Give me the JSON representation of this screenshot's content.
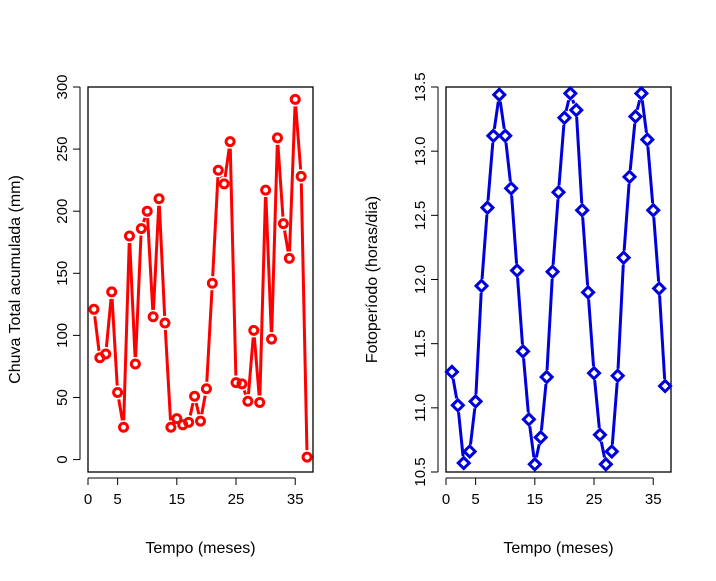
{
  "chart_data": [
    {
      "type": "line",
      "markers": "circle",
      "color": "#ff0000",
      "xlabel": "Tempo (meses)",
      "ylabel": "Chuva Total acumulada (mm)",
      "xlim": [
        0,
        38
      ],
      "ylim": [
        -10,
        300
      ],
      "xticks": [
        0,
        5,
        15,
        25,
        35
      ],
      "yticks": [
        0,
        50,
        100,
        150,
        200,
        250,
        300
      ],
      "x": [
        1,
        2,
        3,
        4,
        5,
        6,
        7,
        8,
        9,
        10,
        11,
        12,
        13,
        14,
        15,
        16,
        17,
        18,
        19,
        20,
        21,
        22,
        23,
        24,
        25,
        26,
        27,
        28,
        29,
        30,
        31,
        32,
        33,
        34,
        35,
        36,
        37
      ],
      "y": [
        121,
        82,
        85,
        135,
        54,
        26,
        180,
        77,
        186,
        200,
        115,
        210,
        110,
        26,
        33,
        28,
        30,
        51,
        31,
        57,
        142,
        233,
        222,
        256,
        62,
        61,
        47,
        104,
        46,
        217,
        97,
        259,
        190,
        162,
        290,
        228,
        2
      ]
    },
    {
      "type": "line",
      "markers": "diamond",
      "color": "#0000dd",
      "xlabel": "Tempo (meses)",
      "ylabel": "Fotoperíodo (horas/dia)",
      "xlim": [
        0,
        38
      ],
      "ylim": [
        10.5,
        13.5
      ],
      "xticks": [
        0,
        5,
        15,
        25,
        35
      ],
      "yticks": [
        10.5,
        11.0,
        11.5,
        12.0,
        12.5,
        13.0,
        13.5
      ],
      "x": [
        1,
        2,
        3,
        4,
        5,
        6,
        7,
        8,
        9,
        10,
        11,
        12,
        13,
        14,
        15,
        16,
        17,
        18,
        19,
        20,
        21,
        22,
        23,
        24,
        25,
        26,
        27,
        28,
        29,
        30,
        31,
        32,
        33,
        34,
        35,
        36,
        37
      ],
      "y": [
        11.28,
        11.02,
        10.57,
        10.66,
        11.05,
        11.95,
        12.56,
        13.12,
        13.44,
        13.12,
        12.71,
        12.07,
        11.44,
        10.91,
        10.56,
        10.77,
        11.24,
        12.06,
        12.68,
        13.26,
        13.45,
        13.32,
        12.54,
        11.9,
        11.27,
        10.79,
        10.56,
        10.66,
        11.25,
        12.17,
        12.8,
        13.27,
        13.45,
        13.09,
        12.54,
        11.93,
        11.17
      ]
    }
  ]
}
